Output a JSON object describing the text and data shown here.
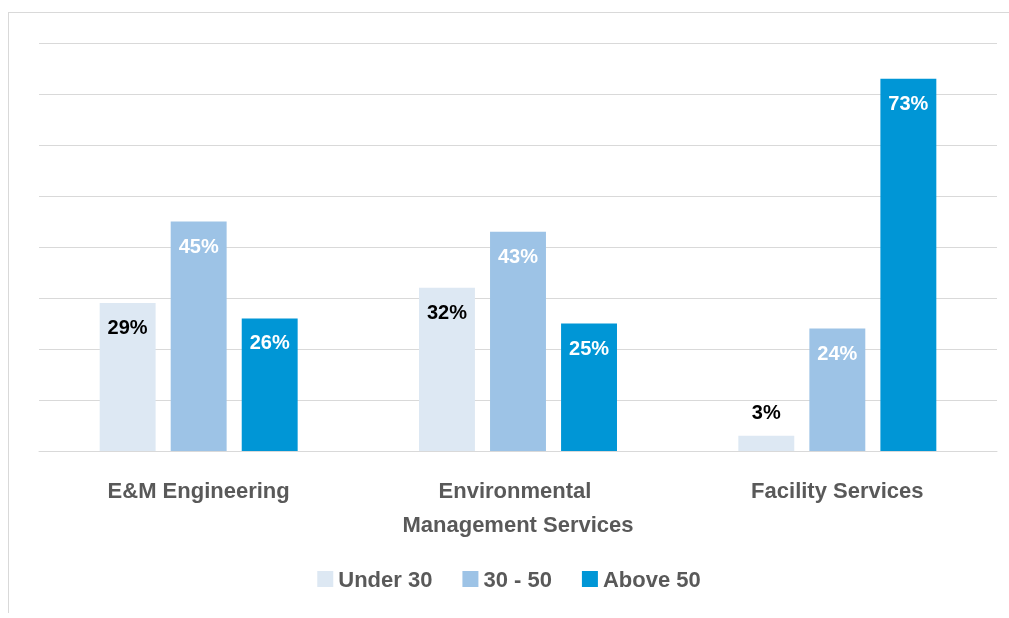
{
  "chart_data": {
    "type": "bar",
    "categories": [
      "E&M Engineering",
      "Environmental Management Services",
      "Facility Services"
    ],
    "series": [
      {
        "name": "Under 30",
        "color": "#dde8f3",
        "values": [
          29,
          32,
          3
        ],
        "value_labels": [
          "29%",
          "32%",
          "3%"
        ]
      },
      {
        "name": "30 - 50",
        "color": "#9dc3e6",
        "values": [
          45,
          43,
          24
        ],
        "value_labels": [
          "45%",
          "43%",
          "24%"
        ]
      },
      {
        "name": "Above 50",
        "color": "#0096d6",
        "values": [
          26,
          25,
          73
        ],
        "value_labels": [
          "26%",
          "25%",
          "73%"
        ]
      }
    ],
    "tick_labels": "x",
    "grid": "y",
    "legend": "bottom"
  }
}
